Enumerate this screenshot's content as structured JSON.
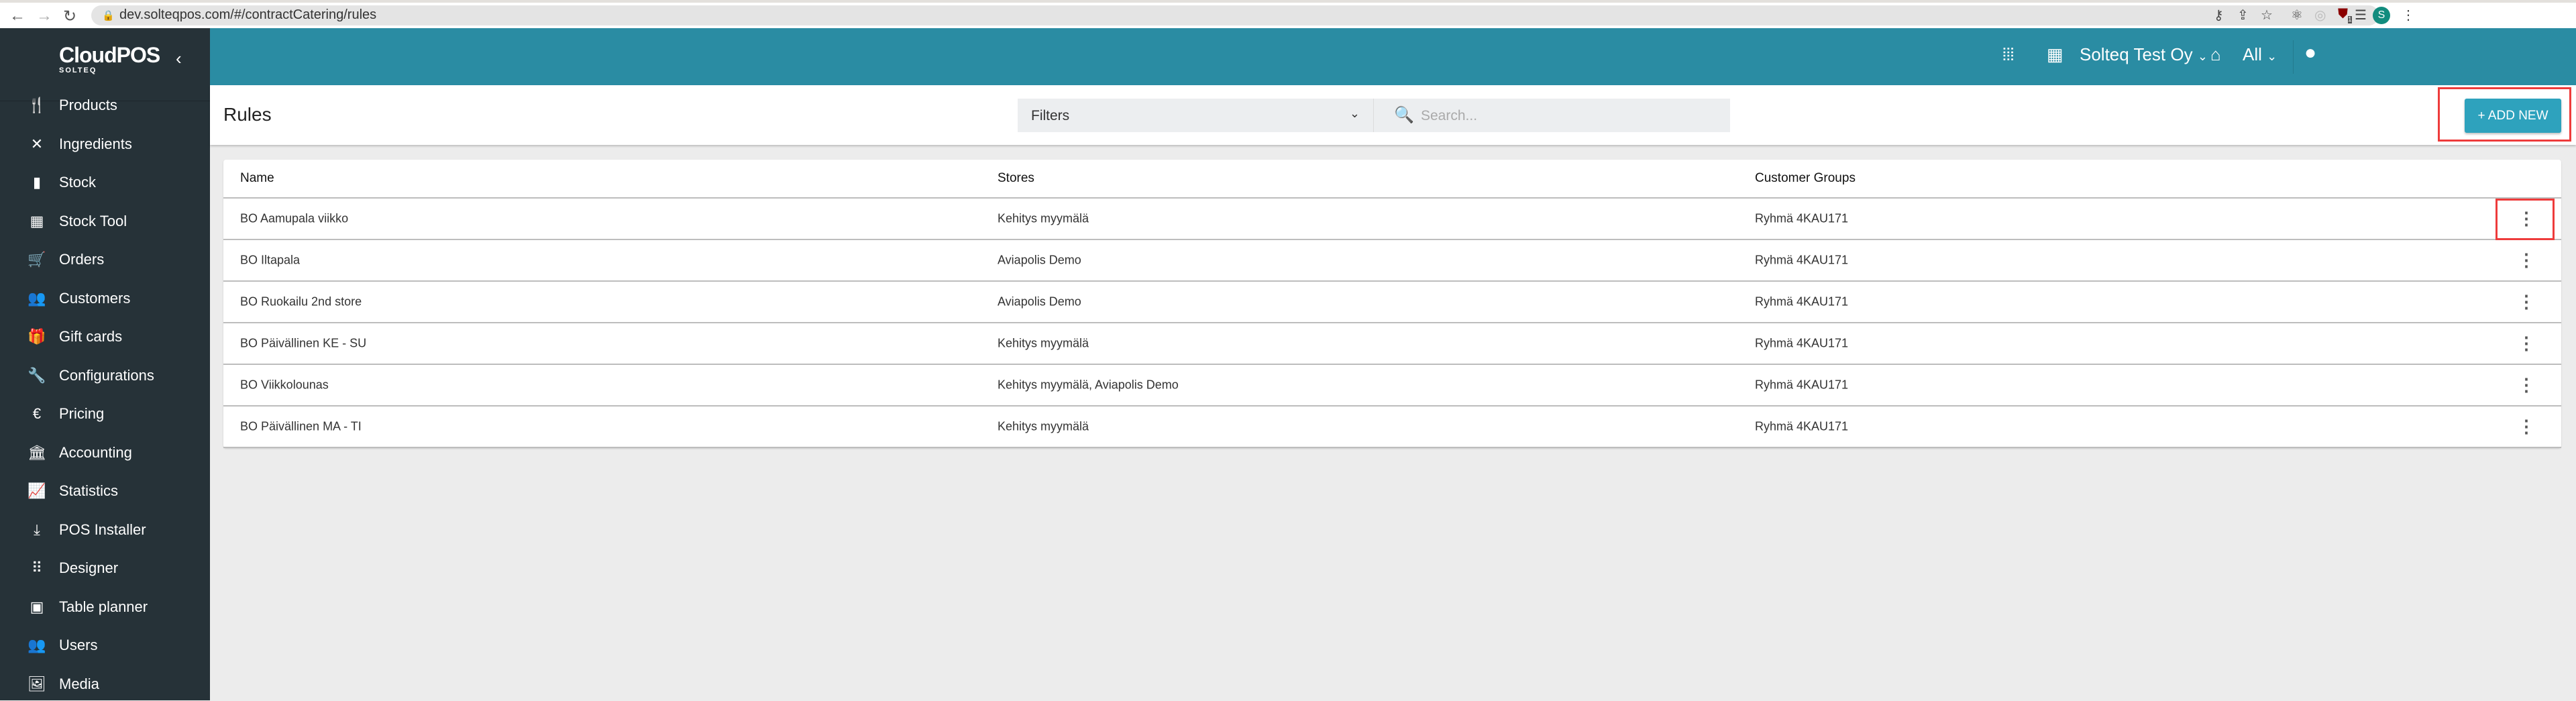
{
  "browser": {
    "url": "dev.solteqpos.com/#/contractCatering/rules",
    "profile_initial": "S",
    "extension_badge": "1"
  },
  "sidebar": {
    "logo": "CloudPOS",
    "logo_sub": "SOLTEQ",
    "items": [
      {
        "label": "Products",
        "icon": "fork-knife-icon",
        "glyph": "🍴"
      },
      {
        "label": "Ingredients",
        "icon": "utensils-cross-icon",
        "glyph": "✕"
      },
      {
        "label": "Stock",
        "icon": "bar-chart-icon",
        "glyph": "▮"
      },
      {
        "label": "Stock Tool",
        "icon": "chart-box-icon",
        "glyph": "▦"
      },
      {
        "label": "Orders",
        "icon": "cart-icon",
        "glyph": "🛒"
      },
      {
        "label": "Customers",
        "icon": "people-icon",
        "glyph": "👥"
      },
      {
        "label": "Gift cards",
        "icon": "gift-card-icon",
        "glyph": "🎁"
      },
      {
        "label": "Configurations",
        "icon": "wrench-icon",
        "glyph": "🔧"
      },
      {
        "label": "Pricing",
        "icon": "euro-icon",
        "glyph": "€"
      },
      {
        "label": "Accounting",
        "icon": "bank-icon",
        "glyph": "🏛"
      },
      {
        "label": "Statistics",
        "icon": "trend-line-icon",
        "glyph": "📈"
      },
      {
        "label": "POS Installer",
        "icon": "download-icon",
        "glyph": "⤓"
      },
      {
        "label": "Designer",
        "icon": "grid-icon",
        "glyph": "⠿"
      },
      {
        "label": "Table planner",
        "icon": "table-planner-icon",
        "glyph": "▣"
      },
      {
        "label": "Users",
        "icon": "users-icon",
        "glyph": "👥"
      },
      {
        "label": "Media",
        "icon": "media-icon",
        "glyph": "🖼"
      }
    ]
  },
  "topbar": {
    "company": "Solteq Test Oy",
    "store": "All"
  },
  "page": {
    "title": "Rules",
    "filters_label": "Filters",
    "search_placeholder": "Search...",
    "add_new_label": "+ ADD NEW"
  },
  "table": {
    "columns": [
      "Name",
      "Stores",
      "Customer Groups"
    ],
    "rows": [
      {
        "name": "BO Aamupala viikko",
        "stores": "Kehitys myymälä",
        "groups": "Ryhmä 4KAU171"
      },
      {
        "name": "BO Iltapala",
        "stores": "Aviapolis Demo",
        "groups": "Ryhmä 4KAU171"
      },
      {
        "name": "BO Ruokailu 2nd store",
        "stores": "Aviapolis Demo",
        "groups": "Ryhmä 4KAU171"
      },
      {
        "name": "BO Päivällinen KE - SU",
        "stores": "Kehitys myymälä",
        "groups": "Ryhmä 4KAU171"
      },
      {
        "name": "BO Viikkolounas",
        "stores": "Kehitys myymälä, Aviapolis Demo",
        "groups": "Ryhmä 4KAU171"
      },
      {
        "name": "BO Päivällinen MA - TI",
        "stores": "Kehitys myymälä",
        "groups": "Ryhmä 4KAU171"
      }
    ]
  },
  "colors": {
    "sidebar": "#263238",
    "topbar": "#2a8ca3",
    "accent": "#2ea2bd",
    "highlight": "#ee3b3b"
  }
}
